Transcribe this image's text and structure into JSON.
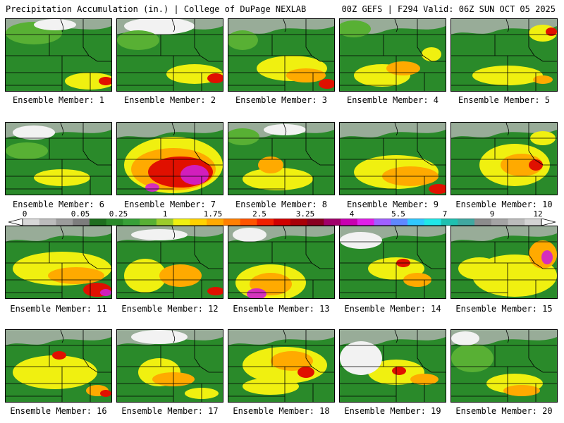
{
  "header": {
    "left_title": "Precipitation Accumulation (in.) | College of DuPage NEXLAB",
    "right_title": "00Z GEFS | F294 Valid: 06Z SUN OCT 05 2025"
  },
  "colorbar": {
    "labels": [
      "0",
      "0.05",
      "0.25",
      "1",
      "1.75",
      "2.5",
      "3.25",
      "4",
      "5.5",
      "7",
      "9",
      "12"
    ],
    "colors": [
      "#d8d8d8",
      "#bcbcbc",
      "#9c9c9c",
      "#7d7d7d",
      "#1e6e1e",
      "#2a8a2a",
      "#38a038",
      "#58b034",
      "#9ccc2c",
      "#f0f010",
      "#ffd200",
      "#ffaa00",
      "#ff8000",
      "#ff5400",
      "#f02000",
      "#d00000",
      "#a80008",
      "#880020",
      "#a0006a",
      "#c800b0",
      "#e020e8",
      "#a060ff",
      "#6088ff",
      "#30c8ff",
      "#20e8e8",
      "#20c0b0",
      "#40a8a0",
      "#8c8c8c",
      "#a4a4a4",
      "#bcbcbc",
      "#d4d4d4"
    ]
  },
  "members": [
    {
      "label": "Ensemble Member: 1"
    },
    {
      "label": "Ensemble Member: 2"
    },
    {
      "label": "Ensemble Member: 3"
    },
    {
      "label": "Ensemble Member: 4"
    },
    {
      "label": "Ensemble Member: 5"
    },
    {
      "label": "Ensemble Member: 6"
    },
    {
      "label": "Ensemble Member: 7"
    },
    {
      "label": "Ensemble Member: 8"
    },
    {
      "label": "Ensemble Member: 9"
    },
    {
      "label": "Ensemble Member: 10"
    },
    {
      "label": "Ensemble Member: 11"
    },
    {
      "label": "Ensemble Member: 12"
    },
    {
      "label": "Ensemble Member: 13"
    },
    {
      "label": "Ensemble Member: 14"
    },
    {
      "label": "Ensemble Member: 15"
    },
    {
      "label": "Ensemble Member: 16"
    },
    {
      "label": "Ensemble Member: 17"
    },
    {
      "label": "Ensemble Member: 18"
    },
    {
      "label": "Ensemble Member: 19"
    },
    {
      "label": "Ensemble Member: 20"
    }
  ]
}
